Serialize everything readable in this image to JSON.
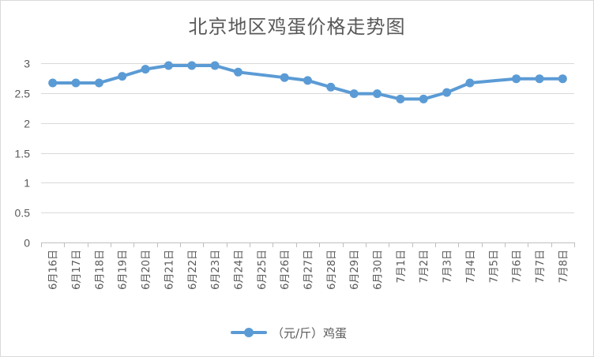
{
  "chart_data": {
    "type": "line",
    "title": "北京地区鸡蛋价格走势图",
    "xlabel": "",
    "ylabel": "",
    "ylim": [
      0,
      3
    ],
    "yticks": [
      "0",
      "0.5",
      "1",
      "1.5",
      "2",
      "2.5",
      "3"
    ],
    "grid": true,
    "legend_position": "bottom",
    "categories": [
      "6月16日",
      "6月17日",
      "6月18日",
      "6月19日",
      "6月20日",
      "6月21日",
      "6月22日",
      "6月23日",
      "6月24日",
      "6月25日",
      "6月26日",
      "6月27日",
      "6月28日",
      "6月29日",
      "6月30日",
      "7月1日",
      "7月2日",
      "7月3日",
      "7月4日",
      "7月5日",
      "7月6日",
      "7月7日",
      "7月8日"
    ],
    "series": [
      {
        "name": "（元/斤）鸡蛋",
        "color": "#5b9bd5",
        "values": [
          2.67,
          2.67,
          2.67,
          2.78,
          2.9,
          2.96,
          2.96,
          2.96,
          2.85,
          null,
          2.76,
          2.71,
          2.6,
          2.49,
          2.49,
          2.4,
          2.4,
          2.51,
          2.67,
          null,
          2.74,
          2.74,
          2.74
        ]
      }
    ]
  }
}
